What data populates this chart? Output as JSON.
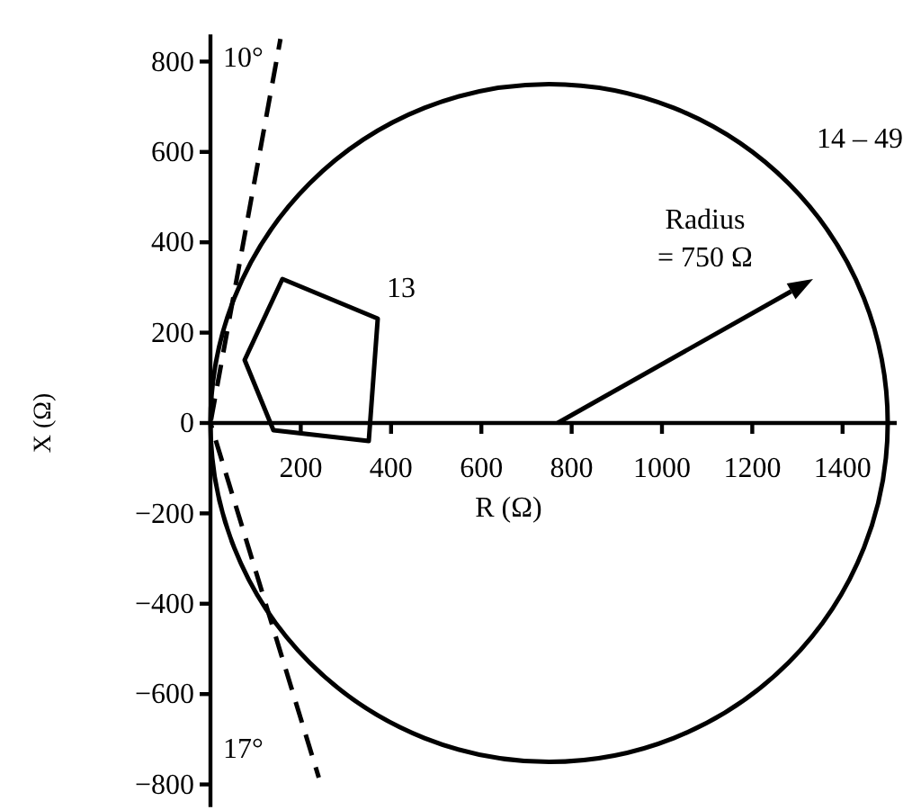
{
  "chart_data": {
    "type": "line",
    "xlabel": "R (Ω)",
    "ylabel": "X (Ω)",
    "xlim": [
      0,
      1520
    ],
    "ylim": [
      -850,
      860
    ],
    "xticks": [
      200,
      400,
      600,
      800,
      1000,
      1200,
      1400
    ],
    "yticks": [
      -800,
      -600,
      -400,
      -200,
      0,
      200,
      400,
      600,
      800
    ],
    "series": [
      {
        "color": "#000000",
        "line_style": "dashed",
        "x": [
          0,
          155
        ],
        "values": [
          0,
          850
        ]
      },
      {
        "color": "#000000",
        "line_style": "dashed",
        "x": [
          0,
          240
        ],
        "values": [
          0,
          -785
        ]
      }
    ],
    "annotations": [
      "10°",
      "17°",
      "13",
      "14 – 49",
      "Radius",
      "= 750 Ω"
    ]
  }
}
